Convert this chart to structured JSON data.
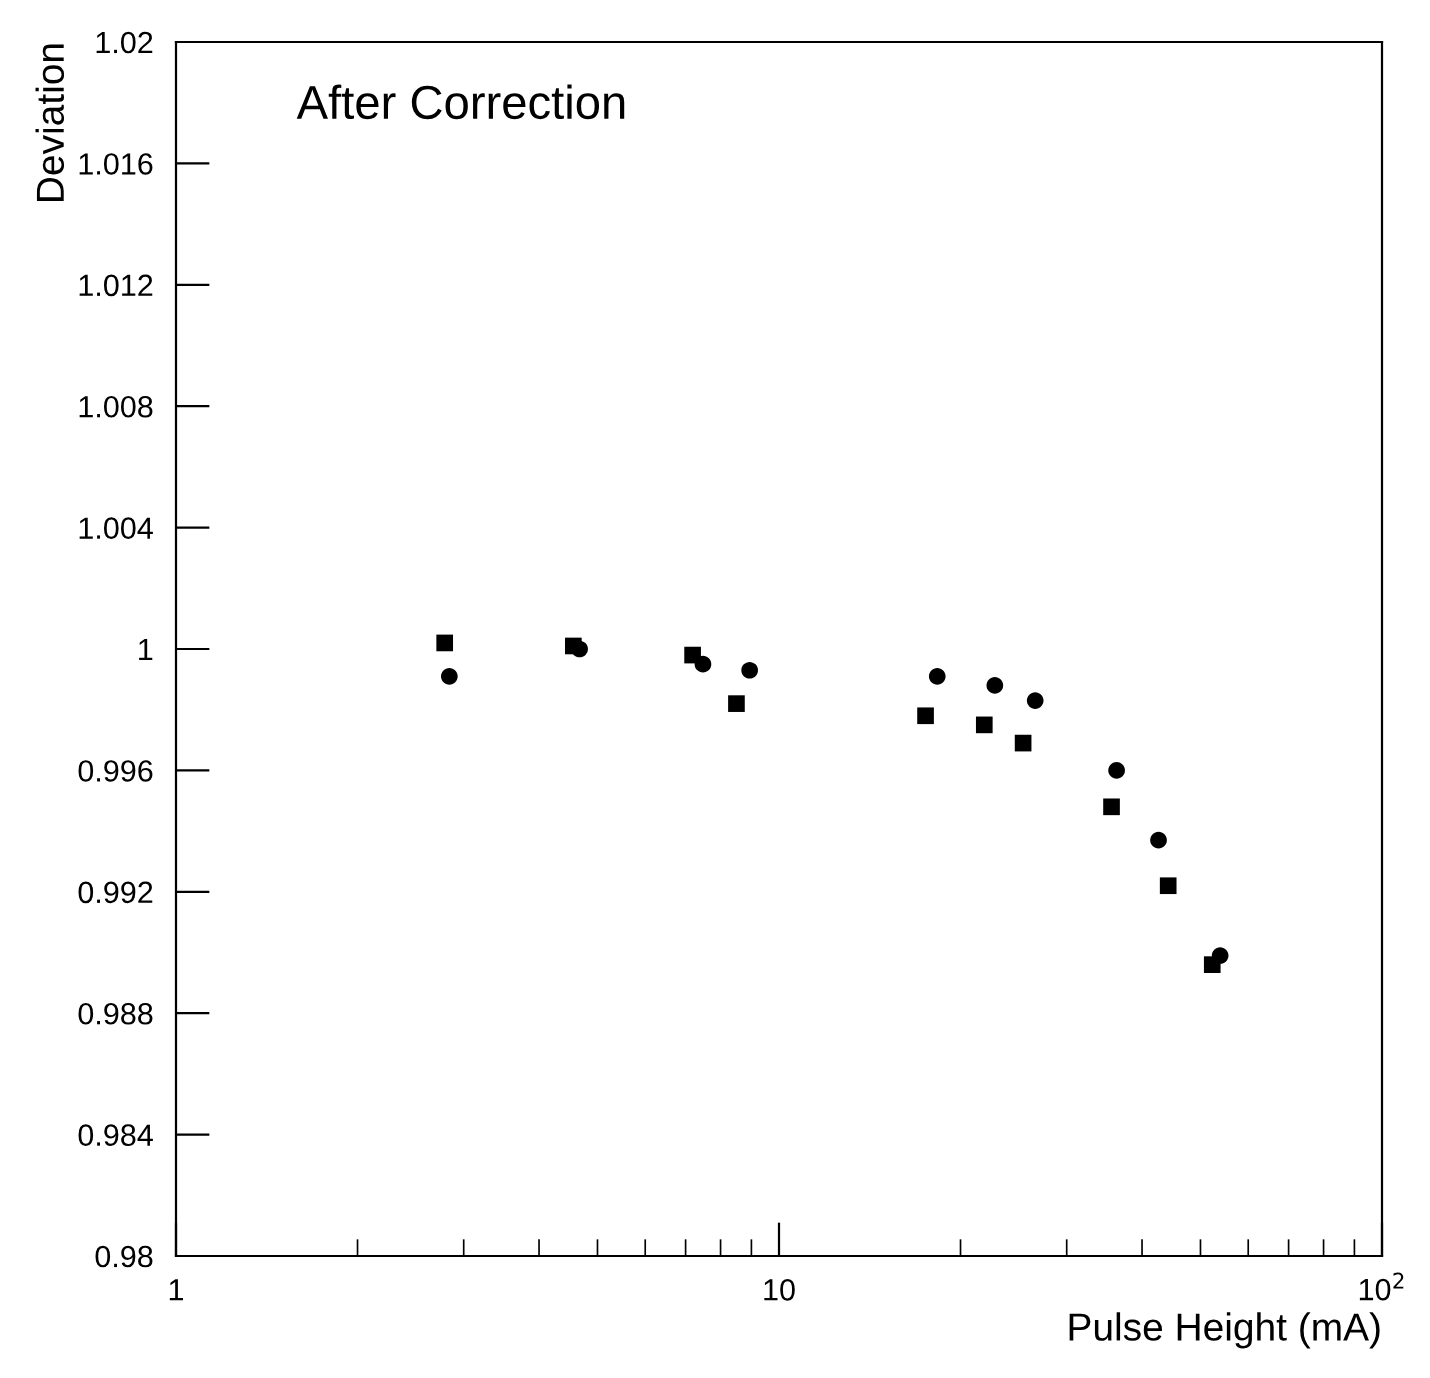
{
  "chart_data": {
    "type": "scatter",
    "xlabel": "Pulse Height (mA)",
    "ylabel": "Deviation",
    "annotations": [
      "After Correction"
    ],
    "log": "x",
    "xlim": [
      1,
      100
    ],
    "xticks": [
      1,
      10,
      {
        "value": 100,
        "label": "10$^{2}$"
      }
    ],
    "ylim": [
      0.98,
      1.02
    ],
    "yticks": [
      0.98,
      0.984,
      0.988,
      0.992,
      0.996,
      1,
      1.004,
      1.008,
      1.012,
      1.016,
      1.02
    ],
    "grid": false,
    "legend": false,
    "series": [
      {
        "marker": "square",
        "color": "#000000",
        "x": [
          2.79,
          4.56,
          7.19,
          8.5,
          17.5,
          21.9,
          25.4,
          35.6,
          44.2,
          52.3
        ],
        "values": [
          1.0002,
          1.0001,
          0.9998,
          0.9982,
          0.9978,
          0.9975,
          0.9969,
          0.9948,
          0.9922,
          0.9896
        ]
      },
      {
        "marker": "circle",
        "color": "#000000",
        "x": [
          2.84,
          4.67,
          7.48,
          8.94,
          18.3,
          22.8,
          26.6,
          36.3,
          42.6,
          53.9
        ],
        "values": [
          0.9991,
          1.0,
          0.9995,
          0.9993,
          0.9991,
          0.9988,
          0.9983,
          0.996,
          0.9937,
          0.9899
        ]
      }
    ]
  }
}
